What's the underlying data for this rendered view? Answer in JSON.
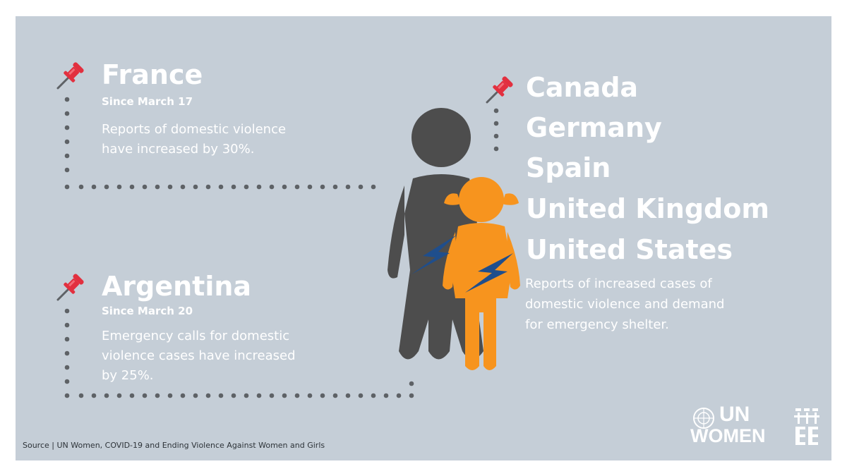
{
  "france": {
    "title": "France",
    "since": "Since March 17",
    "text_line1": "Reports of domestic violence",
    "text_line2": "have increased by 30%."
  },
  "argentina": {
    "title": "Argentina",
    "since": "Since March 20",
    "text_line1": "Emergency calls for domestic",
    "text_line2": "violence cases have increased",
    "text_line3": "by 25%."
  },
  "countries": [
    "Canada",
    "Germany",
    "Spain",
    "United Kingdom",
    "United States"
  ],
  "countries_text": {
    "line1": "Reports of increased cases of",
    "line2": "domestic violence and demand",
    "line3": "for emergency shelter."
  },
  "source": "Source | UN Women, COVID-19 and Ending Violence Against Women and Girls",
  "logo": {
    "line1": "UN",
    "line2": "WOMEN"
  },
  "colors": {
    "background": "#c5ced7",
    "woman": "#4d4d4d",
    "girl": "#f7941e",
    "lightning": "#1f4e8c",
    "pin": "#e2303f",
    "dots": "#5e6266"
  }
}
